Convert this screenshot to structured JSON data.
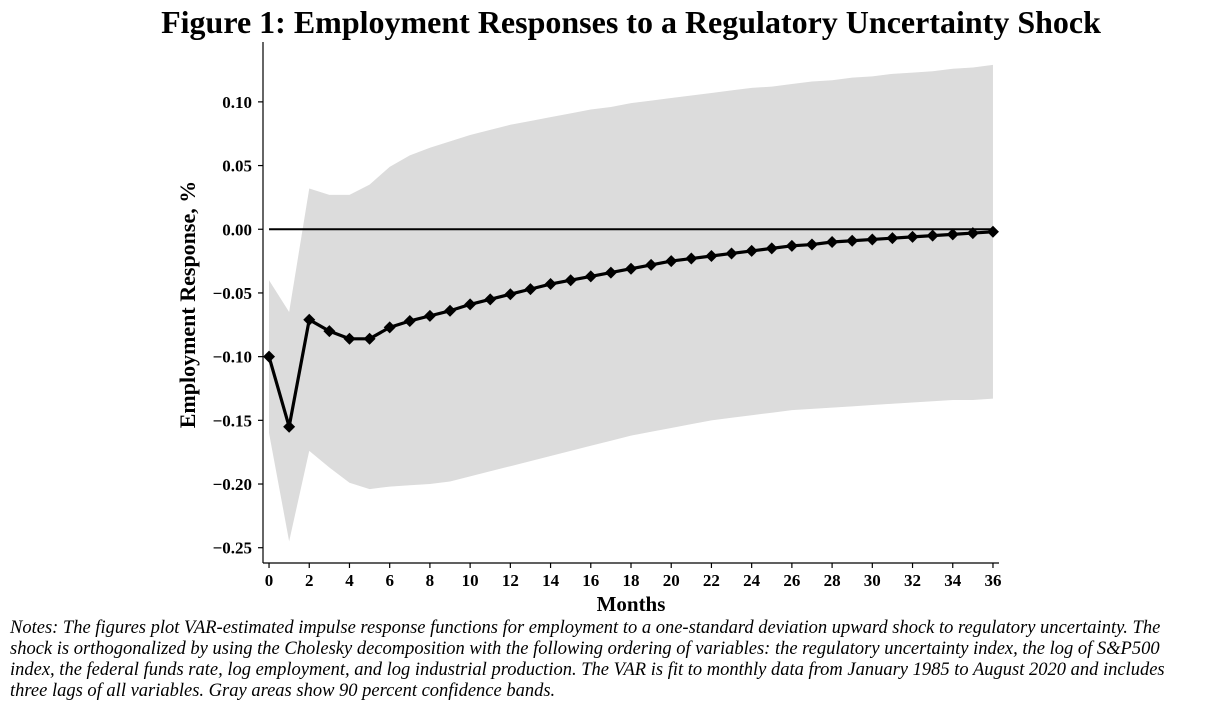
{
  "chart_data": {
    "type": "line",
    "title": "Figure 1: Employment Responses to a Regulatory Uncertainty Shock",
    "xlabel": "Months",
    "ylabel": "Employment Response, %",
    "xlim": [
      -0.3,
      36.3
    ],
    "ylim": [
      -0.262,
      0.147
    ],
    "xticks": [
      0,
      2,
      4,
      6,
      8,
      10,
      12,
      14,
      16,
      18,
      20,
      22,
      24,
      26,
      28,
      30,
      32,
      34,
      36
    ],
    "yticks": [
      -0.25,
      -0.2,
      -0.15,
      -0.1,
      -0.05,
      0.0,
      0.05,
      0.1
    ],
    "ytick_labels": [
      "−0.25",
      "−0.20",
      "−0.15",
      "−0.10",
      "−0.05",
      "0.00",
      "0.05",
      "0.10"
    ],
    "zero_line": 0,
    "grid": false,
    "colors": {
      "line": "#000000",
      "band": "#dcdcdc"
    },
    "x": [
      0,
      1,
      2,
      3,
      4,
      5,
      6,
      7,
      8,
      9,
      10,
      11,
      12,
      13,
      14,
      15,
      16,
      17,
      18,
      19,
      20,
      21,
      22,
      23,
      24,
      25,
      26,
      27,
      28,
      29,
      30,
      31,
      32,
      33,
      34,
      35,
      36
    ],
    "series": [
      {
        "values": [
          -0.1,
          -0.155,
          -0.071,
          -0.08,
          -0.086,
          -0.086,
          -0.077,
          -0.072,
          -0.068,
          -0.064,
          -0.059,
          -0.055,
          -0.051,
          -0.047,
          -0.043,
          -0.04,
          -0.037,
          -0.034,
          -0.031,
          -0.028,
          -0.025,
          -0.023,
          -0.021,
          -0.019,
          -0.017,
          -0.015,
          -0.013,
          -0.012,
          -0.01,
          -0.009,
          -0.008,
          -0.007,
          -0.006,
          -0.005,
          -0.004,
          -0.003,
          -0.002
        ]
      }
    ],
    "band": {
      "lower": [
        -0.16,
        -0.245,
        -0.174,
        -0.187,
        -0.199,
        -0.204,
        -0.202,
        -0.201,
        -0.2,
        -0.198,
        -0.194,
        -0.19,
        -0.186,
        -0.182,
        -0.178,
        -0.174,
        -0.17,
        -0.166,
        -0.162,
        -0.159,
        -0.156,
        -0.153,
        -0.15,
        -0.148,
        -0.146,
        -0.144,
        -0.142,
        -0.141,
        -0.14,
        -0.139,
        -0.138,
        -0.137,
        -0.136,
        -0.135,
        -0.134,
        -0.134,
        -0.133
      ],
      "upper": [
        -0.04,
        -0.065,
        0.032,
        0.027,
        0.027,
        0.035,
        0.049,
        0.058,
        0.064,
        0.069,
        0.074,
        0.078,
        0.082,
        0.085,
        0.088,
        0.091,
        0.094,
        0.096,
        0.099,
        0.101,
        0.103,
        0.105,
        0.107,
        0.109,
        0.111,
        0.112,
        0.114,
        0.116,
        0.117,
        0.119,
        0.12,
        0.122,
        0.123,
        0.124,
        0.126,
        0.127,
        0.129
      ]
    }
  },
  "notes": "Notes:  The figures plot VAR-estimated impulse response functions for employment to a one-standard deviation upward shock to regulatory uncertainty. The shock is orthogonalized by using the Cholesky decomposition with the following ordering of variables: the regulatory uncertainty index, the log of S&P500 index, the federal funds rate, log employment, and log industrial production. The VAR is fit to monthly data from January 1985 to August 2020 and includes three lags of all variables. Gray areas show 90 percent confidence bands."
}
